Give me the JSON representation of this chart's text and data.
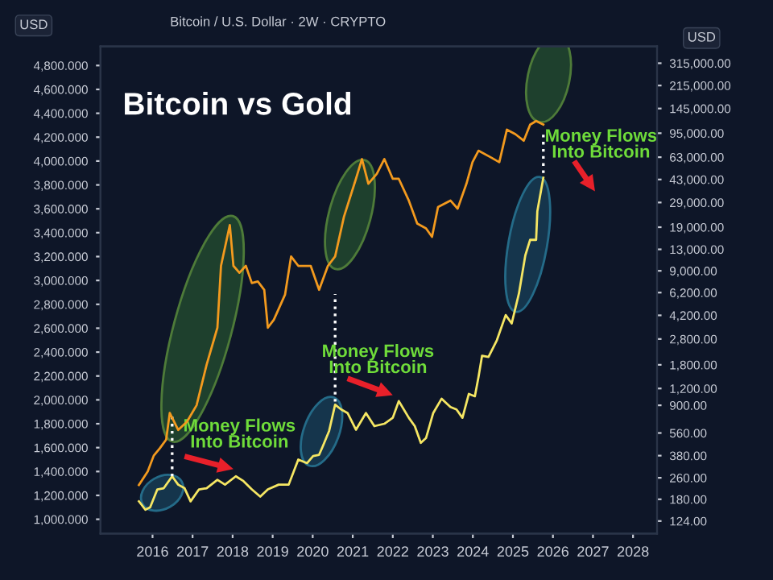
{
  "chart_data": {
    "type": "line",
    "title": "Bitcoin vs Gold",
    "subtitle": "Bitcoin / U.S. Dollar · 2W · CRYPTO",
    "ylabel": "USD",
    "y2label": "USD",
    "log": "y2",
    "grid": false,
    "legend": false,
    "marker": "none",
    "line_style": "solid",
    "xlim": [
      2014.7,
      2028.6
    ],
    "xticks": [
      2016,
      2017,
      2018,
      2019,
      2020,
      2021,
      2022,
      2023,
      2024,
      2025,
      2026,
      2027,
      2028
    ],
    "ylim": [
      880,
      4960
    ],
    "yticks": [
      {
        "value": 1000,
        "label": "1,000.000"
      },
      {
        "value": 1200,
        "label": "1,200.000"
      },
      {
        "value": 1400,
        "label": "1,400.000"
      },
      {
        "value": 1600,
        "label": "1,600.000"
      },
      {
        "value": 1800,
        "label": "1,800.000"
      },
      {
        "value": 2000,
        "label": "2,000.000"
      },
      {
        "value": 2200,
        "label": "2,200.000"
      },
      {
        "value": 2400,
        "label": "2,400.000"
      },
      {
        "value": 2600,
        "label": "2,600.000"
      },
      {
        "value": 2800,
        "label": "2,800.000"
      },
      {
        "value": 3000,
        "label": "3,000.000"
      },
      {
        "value": 3200,
        "label": "3,200.000"
      },
      {
        "value": 3400,
        "label": "3,400.000"
      },
      {
        "value": 3600,
        "label": "3,600.000"
      },
      {
        "value": 3800,
        "label": "3,800.000"
      },
      {
        "value": 4000,
        "label": "4,000.000"
      },
      {
        "value": 4200,
        "label": "4,200.000"
      },
      {
        "value": 4400,
        "label": "4,400.000"
      },
      {
        "value": 4600,
        "label": "4,600.000"
      },
      {
        "value": 4800,
        "label": "4,800.000"
      }
    ],
    "y2lim": [
      100,
      420000
    ],
    "y2ticks": [
      {
        "value": 124,
        "label": "124.00"
      },
      {
        "value": 180,
        "label": "180.00"
      },
      {
        "value": 260,
        "label": "260.00"
      },
      {
        "value": 380,
        "label": "380.00"
      },
      {
        "value": 560,
        "label": "560.00"
      },
      {
        "value": 900,
        "label": "900.00"
      },
      {
        "value": 1200,
        "label": "1,200.00"
      },
      {
        "value": 1800,
        "label": "1,800.00"
      },
      {
        "value": 2800,
        "label": "2,800.00"
      },
      {
        "value": 4200,
        "label": "4,200.00"
      },
      {
        "value": 6200,
        "label": "6,200.00"
      },
      {
        "value": 9000,
        "label": "9,000.00"
      },
      {
        "value": 13000,
        "label": "13,000.00"
      },
      {
        "value": 19000,
        "label": "19,000.00"
      },
      {
        "value": 29000,
        "label": "29,000.00"
      },
      {
        "value": 43000,
        "label": "43,000.00"
      },
      {
        "value": 63000,
        "label": "63,000.00"
      },
      {
        "value": 95000,
        "label": "95,000.00"
      },
      {
        "value": 145000,
        "label": "145,000.00"
      },
      {
        "value": 215000,
        "label": "215,000.00"
      },
      {
        "value": 315000,
        "label": "315,000.00"
      }
    ],
    "series": [
      {
        "color": "#f5e663",
        "x": [
          2015.66,
          2015.82,
          2015.94,
          2016.12,
          2016.28,
          2016.49,
          2016.64,
          2016.8,
          2016.95,
          2017.16,
          2017.35,
          2017.62,
          2017.81,
          2018.08,
          2018.27,
          2018.48,
          2018.69,
          2018.88,
          2019.15,
          2019.4,
          2019.64,
          2019.86,
          2020.01,
          2020.16,
          2020.25,
          2020.41,
          2020.56,
          2020.71,
          2020.87,
          2021.08,
          2021.33,
          2021.54,
          2021.79,
          2022.0,
          2022.15,
          2022.4,
          2022.55,
          2022.7,
          2022.83,
          2023.01,
          2023.22,
          2023.44,
          2023.59,
          2023.74,
          2023.9,
          2024.05,
          2024.14,
          2024.23,
          2024.39,
          2024.6,
          2024.82,
          2024.97,
          2025.15,
          2025.31,
          2025.43,
          2025.58,
          2025.61,
          2025.76
        ],
        "values": [
          1150,
          1080,
          1100,
          1250,
          1260,
          1360,
          1290,
          1260,
          1150,
          1250,
          1260,
          1330,
          1290,
          1360,
          1320,
          1250,
          1190,
          1250,
          1290,
          1290,
          1500,
          1470,
          1530,
          1540,
          1610,
          1740,
          1960,
          1920,
          1890,
          1750,
          1890,
          1780,
          1800,
          1850,
          1990,
          1850,
          1780,
          1640,
          1680,
          1890,
          2010,
          1940,
          1920,
          1850,
          2050,
          2030,
          2190,
          2370,
          2360,
          2500,
          2710,
          2640,
          2890,
          3210,
          3340,
          3340,
          3580,
          3860
        ]
      },
      {
        "color": "#f39a1e",
        "axis": "y2",
        "x": [
          2015.66,
          2015.88,
          2016.03,
          2016.18,
          2016.34,
          2016.43,
          2016.64,
          2016.86,
          2017.1,
          2017.35,
          2017.62,
          2017.71,
          2017.93,
          2018.02,
          2018.17,
          2018.33,
          2018.48,
          2018.63,
          2018.79,
          2018.88,
          2019.03,
          2019.31,
          2019.46,
          2019.64,
          2019.95,
          2020.16,
          2020.38,
          2020.56,
          2020.78,
          2021.08,
          2021.23,
          2021.39,
          2021.6,
          2021.79,
          2022.0,
          2022.15,
          2022.4,
          2022.61,
          2022.83,
          2022.98,
          2023.13,
          2023.44,
          2023.62,
          2023.84,
          2023.99,
          2024.14,
          2024.45,
          2024.66,
          2024.85,
          2025.06,
          2025.27,
          2025.43,
          2025.58,
          2025.76
        ],
        "values": [
          230,
          290,
          380,
          430,
          500,
          790,
          590,
          680,
          900,
          1800,
          3400,
          9800,
          19700,
          9800,
          8700,
          9800,
          7300,
          7500,
          6500,
          3400,
          3900,
          6000,
          11500,
          9800,
          9800,
          6500,
          9800,
          11500,
          22700,
          43500,
          61000,
          40000,
          47300,
          61000,
          43500,
          43500,
          30000,
          20200,
          18600,
          16100,
          26800,
          30000,
          26100,
          40000,
          57800,
          70400,
          62800,
          57800,
          101000,
          93500,
          83500,
          110000,
          117000,
          110000
        ]
      }
    ],
    "annotations": [
      "Money Flows\nInto Bitcoin",
      "Money Flows\nInto Bitcoin",
      "Money Flows\nInto Bitcoin"
    ]
  }
}
